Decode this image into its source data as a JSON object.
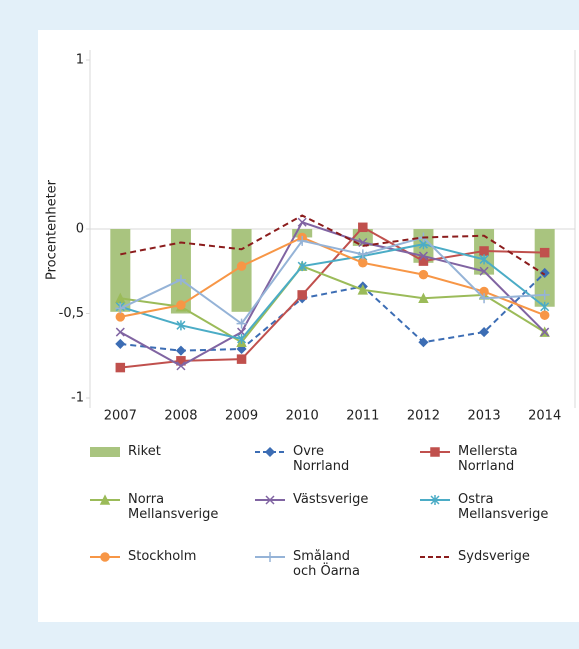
{
  "chart_data": {
    "type": "bar-line",
    "y_label": "Procentenheter",
    "categories": [
      "2007",
      "2008",
      "2009",
      "2010",
      "2011",
      "2012",
      "2013",
      "2014"
    ],
    "ylim": [
      -1,
      1
    ],
    "yticks": [
      -1,
      {
        "value": -0.5,
        "label": "-0,5"
      },
      0,
      1
    ],
    "series": [
      {
        "name": "Riket",
        "type": "bar",
        "color": "#a9c47f",
        "values": [
          -0.49,
          -0.5,
          -0.49,
          -0.05,
          -0.1,
          -0.2,
          -0.27,
          -0.46
        ]
      },
      {
        "name": "Övre\nNorrland",
        "type": "line",
        "color": "#3c6db4",
        "marker": "diamond",
        "dash": true,
        "values": [
          -0.68,
          -0.72,
          -0.71,
          -0.41,
          -0.34,
          -0.67,
          -0.61,
          -0.26
        ]
      },
      {
        "name": "Mellersta\nNorrland",
        "type": "line",
        "color": "#c0504d",
        "marker": "square",
        "dash": false,
        "values": [
          -0.82,
          -0.78,
          -0.77,
          -0.39,
          0.01,
          -0.19,
          -0.13,
          -0.14
        ]
      },
      {
        "name": "Norra\nMellansverige",
        "type": "line",
        "color": "#9bbb59",
        "marker": "triangle",
        "dash": false,
        "values": [
          -0.41,
          -0.46,
          -0.67,
          -0.22,
          -0.36,
          -0.41,
          -0.39,
          -0.61
        ]
      },
      {
        "name": "Västsverige",
        "type": "line",
        "color": "#8064a2",
        "marker": "x",
        "dash": false,
        "values": [
          -0.61,
          -0.81,
          -0.61,
          0.04,
          -0.08,
          -0.16,
          -0.25,
          -0.61
        ]
      },
      {
        "name": "Östra\nMellansverige",
        "type": "line",
        "color": "#4bacc6",
        "marker": "star",
        "dash": false,
        "values": [
          -0.46,
          -0.57,
          -0.65,
          -0.22,
          -0.16,
          -0.09,
          -0.18,
          -0.46
        ]
      },
      {
        "name": "Stockholm",
        "type": "line",
        "color": "#f79646",
        "marker": "circle",
        "dash": false,
        "values": [
          -0.52,
          -0.45,
          -0.22,
          -0.05,
          -0.2,
          -0.27,
          -0.37,
          -0.51
        ]
      },
      {
        "name": "Småland\noch Öarna",
        "type": "line",
        "color": "#95b3d7",
        "marker": "plus",
        "dash": false,
        "values": [
          -0.47,
          -0.3,
          -0.56,
          -0.07,
          -0.15,
          -0.05,
          -0.41,
          -0.39
        ]
      },
      {
        "name": "Sydsverige",
        "type": "line",
        "color": "#8b1c1c",
        "marker": "none",
        "dash": true,
        "values": [
          -0.15,
          -0.08,
          -0.12,
          0.08,
          -0.1,
          -0.05,
          -0.04,
          -0.27
        ]
      }
    ]
  }
}
